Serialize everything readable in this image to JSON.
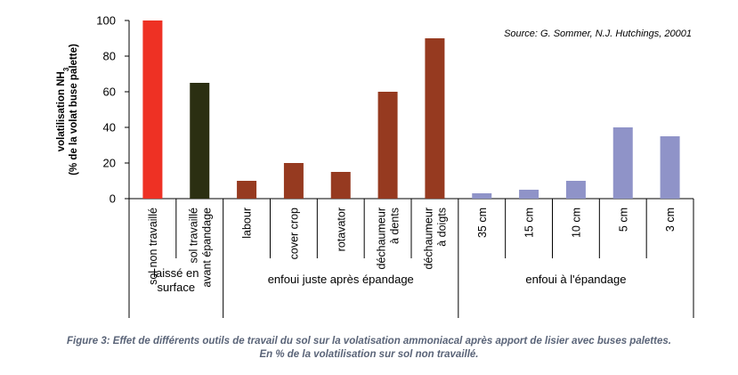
{
  "chart_data": {
    "type": "bar",
    "source": "Source: G. Sommer, N.J. Hutchings, 20001",
    "ylabel_line1": "volatilisation NH",
    "ylabel_sub": "3",
    "ylabel_line2": "(% de la volat buse palette)",
    "ylim": [
      0,
      100
    ],
    "yticks": [
      0,
      20,
      40,
      60,
      80,
      100
    ],
    "grid": false,
    "categories": [
      {
        "label": [
          "sol non travaillé"
        ],
        "value": 100,
        "color": "#ee3124"
      },
      {
        "label": [
          "sol travaillé",
          "avant épandage"
        ],
        "value": 65,
        "color": "#2b2f12"
      },
      {
        "label": [
          "labour"
        ],
        "value": 10,
        "color": "#963a20"
      },
      {
        "label": [
          "cover crop"
        ],
        "value": 20,
        "color": "#963a20"
      },
      {
        "label": [
          "rotavator"
        ],
        "value": 15,
        "color": "#963a20"
      },
      {
        "label": [
          "déchaumeur",
          "à dents"
        ],
        "value": 60,
        "color": "#963a20"
      },
      {
        "label": [
          "déchaumeur",
          "à doigts"
        ],
        "value": 90,
        "color": "#963a20"
      },
      {
        "label": [
          "35 cm"
        ],
        "value": 3,
        "color": "#8f93c8"
      },
      {
        "label": [
          "15 cm"
        ],
        "value": 5,
        "color": "#8f93c8"
      },
      {
        "label": [
          "10 cm"
        ],
        "value": 10,
        "color": "#8f93c8"
      },
      {
        "label": [
          "5 cm"
        ],
        "value": 40,
        "color": "#8f93c8"
      },
      {
        "label": [
          "3 cm"
        ],
        "value": 35,
        "color": "#8f93c8"
      }
    ],
    "groups": [
      {
        "label": [
          "laissé en",
          "surface"
        ],
        "start": 0,
        "end": 1
      },
      {
        "label": [
          "enfoui juste après épandage"
        ],
        "start": 2,
        "end": 6
      },
      {
        "label": [
          "enfoui à l'épandage"
        ],
        "start": 7,
        "end": 11
      }
    ]
  },
  "caption": {
    "line1": "Figure 3: Effet de différents outils de travail du sol sur la volatisation ammoniacal après apport de lisier avec buses palettes.",
    "line2": "En % de la volatilisation sur sol non travaillé."
  }
}
